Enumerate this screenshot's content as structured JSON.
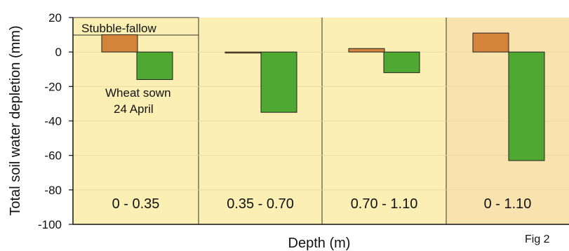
{
  "chart_data": {
    "type": "bar",
    "categories": [
      "0 - 0.35",
      "0.35 - 0.70",
      "0.70 - 1.10",
      "0 - 1.10"
    ],
    "series": [
      {
        "name": "Stubble-fallow",
        "values": [
          10,
          -0.5,
          2,
          11
        ],
        "color": "#d4843a"
      },
      {
        "name": "Wheat sown 24 April",
        "values": [
          -16,
          -35,
          -12,
          -63
        ],
        "color": "#4ea832"
      }
    ],
    "title": "",
    "xlabel": "Depth (m)",
    "ylabel": "Total soil water depletion (mm)",
    "ylim": [
      -100,
      20
    ],
    "yticks": [
      20,
      0,
      -20,
      -40,
      -60,
      -80,
      -100
    ],
    "legend": {
      "stubble_label": "Stubble-fallow",
      "wheat_label_line1": "Wheat sown",
      "wheat_label_line2": "24 April"
    },
    "figure_label": "Fig 2",
    "panel_colors": [
      "#fbefb3",
      "#fbefb3",
      "#fbefb3",
      "#f8e2ae"
    ],
    "gridlines_at": [
      0,
      -20,
      -40,
      -60,
      -80
    ]
  }
}
